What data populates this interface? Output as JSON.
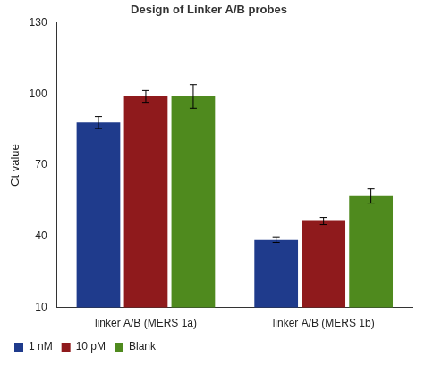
{
  "chart_data": {
    "type": "bar",
    "title": "Design of Linker A/B probes",
    "y_label": "Ct value",
    "categories": [
      "linker A/B (MERS 1a)",
      "linker A/B (MERS 1b)"
    ],
    "series": [
      {
        "name": "1 nM",
        "color": "#1f3b8c",
        "values": [
          88,
          38.5
        ],
        "errors": [
          2.5,
          1
        ]
      },
      {
        "name": "10 pM",
        "color": "#8f1a1c",
        "values": [
          99,
          46.5
        ],
        "errors": [
          2.5,
          1.5
        ]
      },
      {
        "name": "Blank",
        "color": "#4f8a1e",
        "values": [
          99,
          57
        ],
        "errors": [
          5,
          3
        ]
      }
    ],
    "ylim": [
      10,
      130
    ],
    "yticks": [
      10,
      40,
      70,
      100,
      130
    ],
    "grid": false,
    "legend": "bottom"
  }
}
